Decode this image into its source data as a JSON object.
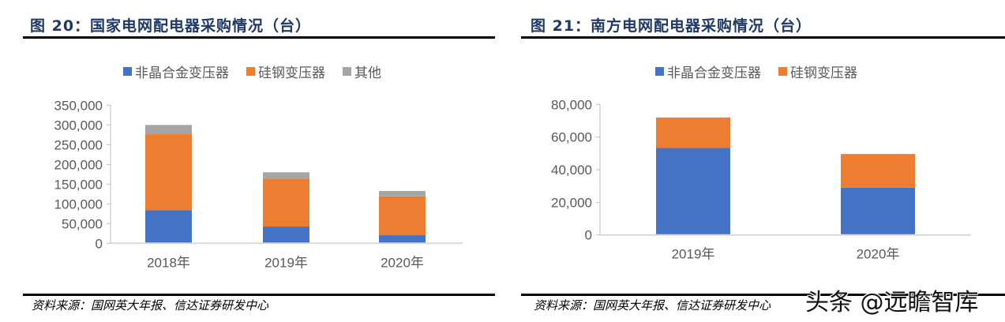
{
  "left": {
    "title": "图 20：国家电网配电器采购情况（台）",
    "source": "资料来源：国网英大年报、信达证券研发中心"
  },
  "right": {
    "title": "图 21：南方电网配电器采购情况（台）",
    "source": "资料来源：国网英大年报、信达证券研发中心"
  },
  "watermark": "头条 @远瞻智库",
  "colors": {
    "amorphous": "#4472c4",
    "silicon_steel": "#ed7d31",
    "other": "#a5a5a5",
    "title": "#1f3864",
    "axis": "#d9d9d9",
    "text": "#595959"
  },
  "chart_data": [
    {
      "type": "bar",
      "stacked": true,
      "title": "图 20：国家电网配电器采购情况（台）",
      "xlabel": "",
      "ylabel": "",
      "categories": [
        "2018年",
        "2019年",
        "2020年"
      ],
      "series": [
        {
          "name": "非晶合金变压器",
          "color": "#4472c4",
          "values": [
            84000,
            42500,
            20500
          ]
        },
        {
          "name": "硅钢变压器",
          "color": "#ed7d31",
          "values": [
            192500,
            121500,
            98500
          ]
        },
        {
          "name": "其他",
          "color": "#a5a5a5",
          "values": [
            23500,
            16000,
            13500
          ]
        }
      ],
      "yticks": [
        "0",
        "50,000",
        "100,000",
        "150,000",
        "200,000",
        "250,000",
        "300,000",
        "350,000"
      ],
      "ylim": [
        0,
        350000
      ],
      "grid": false,
      "legend_position": "top"
    },
    {
      "type": "bar",
      "stacked": true,
      "title": "图 21：南方电网配电器采购情况（台）",
      "xlabel": "",
      "ylabel": "",
      "categories": [
        "2019年",
        "2020年"
      ],
      "series": [
        {
          "name": "非晶合金变压器",
          "color": "#4472c4",
          "values": [
            53400,
            29000
          ]
        },
        {
          "name": "硅钢变压器",
          "color": "#ed7d31",
          "values": [
            18600,
            20600
          ]
        }
      ],
      "yticks": [
        "0",
        "20,000",
        "40,000",
        "60,000",
        "80,000"
      ],
      "ylim": [
        0,
        80000
      ],
      "grid": false,
      "legend_position": "top"
    }
  ]
}
